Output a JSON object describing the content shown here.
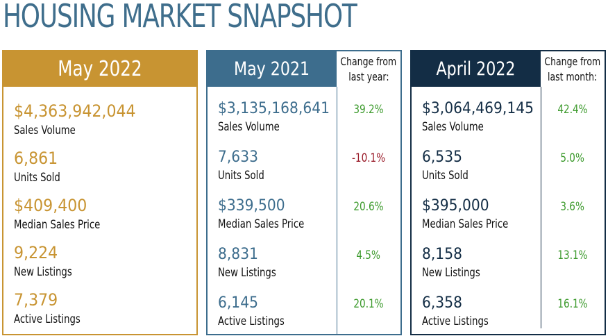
{
  "title": "HOUSING MARKET SNAPSHOT",
  "panels": [
    {
      "heading": "May 2022",
      "metrics": [
        {
          "value": "$4,363,942,044",
          "label": "Sales Volume"
        },
        {
          "value": "6,861",
          "label": "Units Sold"
        },
        {
          "value": "$409,400",
          "label": "Median Sales Price"
        },
        {
          "value": "9,224",
          "label": "New Listings"
        },
        {
          "value": "7,379",
          "label": "Active Listings"
        }
      ]
    },
    {
      "heading": "May 2021",
      "change_heading_1": "Change from",
      "change_heading_2": "last year:",
      "metrics": [
        {
          "value": "$3,135,168,641",
          "label": "Sales Volume",
          "change": "39.2%"
        },
        {
          "value": "7,633",
          "label": "Units Sold",
          "change": "-10.1%"
        },
        {
          "value": "$339,500",
          "label": "Median Sales Price",
          "change": "20.6%"
        },
        {
          "value": "8,831",
          "label": "New Listings",
          "change": "4.5%"
        },
        {
          "value": "6,145",
          "label": "Active Listings",
          "change": "20.1%"
        }
      ]
    },
    {
      "heading": "April 2022",
      "change_heading_1": "Change from",
      "change_heading_2": "last month:",
      "metrics": [
        {
          "value": "$3,064,469,145",
          "label": "Sales Volume",
          "change": "42.4%"
        },
        {
          "value": "6,535",
          "label": "Units Sold",
          "change": "5.0%"
        },
        {
          "value": "$395,000",
          "label": "Median Sales Price",
          "change": "3.6%"
        },
        {
          "value": "8,158",
          "label": "New Listings",
          "change": "13.1%"
        },
        {
          "value": "6,358",
          "label": "Active Listings",
          "change": "16.1%"
        }
      ]
    }
  ],
  "colors": {
    "gold": "#c89432",
    "steel_blue": "#3d6d8d",
    "navy": "#132d45",
    "positive": "#3c9a2c",
    "negative": "#9a1c2a"
  }
}
